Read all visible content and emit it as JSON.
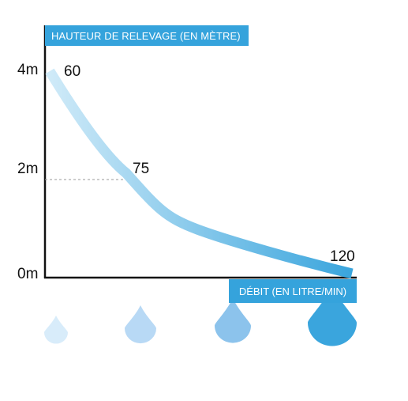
{
  "colors": {
    "accent": "#35a3dc",
    "curve_start": "#cfeaf8",
    "curve_end": "#3aa5dd",
    "axis": "#111111",
    "guide": "#999999"
  },
  "chart_data": {
    "type": "line",
    "ylabel": "HAUTEUR DE RELEVAGE (EN MÈTRE)",
    "xlabel": "DÉBIT (EN LITRE/MIN)",
    "y_ticks": [
      {
        "value": 4,
        "label": "4m"
      },
      {
        "value": 2,
        "label": "2m"
      },
      {
        "value": 0,
        "label": "0m"
      }
    ],
    "ylim": [
      0,
      4
    ],
    "points": [
      {
        "x": 60,
        "y": 4.0,
        "label": "60"
      },
      {
        "x": 75,
        "y": 2.0,
        "label": "75"
      },
      {
        "x": 120,
        "y": 0.1,
        "label": "120"
      }
    ],
    "guide_line_at_y": 2,
    "grid": false,
    "drops": [
      {
        "icon": "water-drop-icon",
        "size": "small",
        "color": "#d8ecfa"
      },
      {
        "icon": "water-drop-icon",
        "size": "medium",
        "color": "#b8d9f5"
      },
      {
        "icon": "water-drop-icon",
        "size": "large",
        "color": "#8cc3ec"
      },
      {
        "icon": "water-drop-icon",
        "size": "x-large",
        "color": "#3aa5dd"
      }
    ]
  }
}
